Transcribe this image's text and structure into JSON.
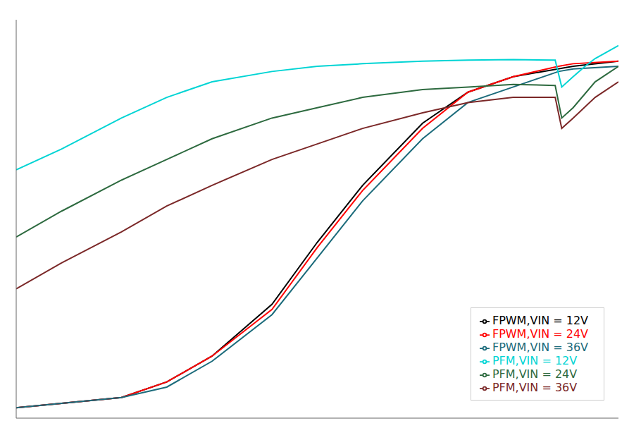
{
  "chart_data": {
    "type": "line",
    "log": "x",
    "xlim": [
      0.1,
      1000
    ],
    "ylim": [
      20,
      97
    ],
    "tick_labels": false,
    "legend": "lower right",
    "series": [
      {
        "name": "FPWM,VIN = 12V",
        "color": "#000000",
        "x": [
          0.1,
          0.5,
          1,
          2,
          5,
          10,
          20,
          50,
          100,
          200,
          500,
          1000
        ],
        "values": [
          22,
          24,
          27,
          32,
          42,
          54,
          65,
          77,
          83,
          86,
          88,
          89
        ]
      },
      {
        "name": "FPWM,VIN = 24V",
        "color": "#ff0000",
        "x": [
          0.1,
          0.5,
          1,
          2,
          5,
          10,
          20,
          50,
          100,
          200,
          400,
          500,
          1000
        ],
        "values": [
          22,
          24,
          27,
          32,
          41,
          53,
          64,
          76,
          83,
          86,
          88,
          88.5,
          89
        ]
      },
      {
        "name": "FPWM,VIN = 36V",
        "color": "#1B6B7B",
        "x": [
          0.1,
          0.5,
          1,
          2,
          5,
          10,
          20,
          50,
          100,
          200,
          400,
          500,
          1000
        ],
        "values": [
          22,
          24,
          26,
          31,
          40,
          51,
          62,
          74,
          81,
          84,
          87,
          87.5,
          88
        ]
      },
      {
        "name": "PFM,VIN = 12V",
        "color": "#00D4D4",
        "x": [
          0.1,
          0.2,
          0.5,
          1,
          2,
          5,
          10,
          20,
          50,
          100,
          200,
          380,
          420,
          500,
          600,
          700,
          1000
        ],
        "values": [
          68,
          72,
          78,
          82,
          85,
          87,
          88,
          88.5,
          89,
          89.2,
          89.3,
          89.2,
          84,
          86,
          88,
          89.5,
          92
        ]
      },
      {
        "name": "PFM,VIN = 24V",
        "color": "#2D6A3F",
        "x": [
          0.1,
          0.2,
          0.5,
          1,
          2,
          5,
          10,
          20,
          50,
          100,
          200,
          380,
          420,
          500,
          700,
          1000
        ],
        "values": [
          55,
          60,
          66,
          70,
          74,
          78,
          80,
          82,
          83.5,
          84,
          84.5,
          84.3,
          78,
          80,
          85,
          88
        ]
      },
      {
        "name": "PFM,VIN = 36V",
        "color": "#7B2828",
        "x": [
          0.1,
          0.2,
          0.5,
          1,
          2,
          5,
          10,
          20,
          50,
          100,
          200,
          380,
          420,
          500,
          700,
          1000
        ],
        "values": [
          45,
          50,
          56,
          61,
          65,
          70,
          73,
          76,
          79,
          81,
          82,
          82,
          76,
          78,
          82,
          85
        ]
      }
    ]
  }
}
